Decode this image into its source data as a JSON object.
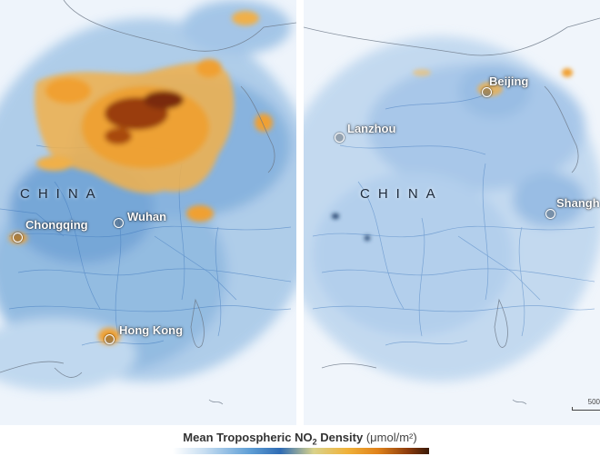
{
  "legend": {
    "title_prefix": "Mean Tropospheric NO",
    "title_subscript": "2",
    "title_suffix": " Density",
    "unit": "(μmol/m²)",
    "gradient_colors": [
      "#ffffff",
      "#c9dff2",
      "#5f9fd6",
      "#2f6cb4",
      "#f0b23a",
      "#e0821a",
      "#8a3a0c",
      "#3a1a08"
    ]
  },
  "panels": {
    "left": {
      "country_label": "CHINA",
      "cities": [
        "Chongqing",
        "Wuhan",
        "Hong Kong"
      ]
    },
    "right": {
      "country_label": "CHINA",
      "cities": [
        "Beijing",
        "Lanzhou",
        "Shangh"
      ],
      "scale_label": "500"
    }
  },
  "colors": {
    "low": "#c9dff2",
    "mid": "#5f9fd6",
    "high": "#f0b23a",
    "peak": "#6a2a0a",
    "background": "#eef4fb"
  }
}
